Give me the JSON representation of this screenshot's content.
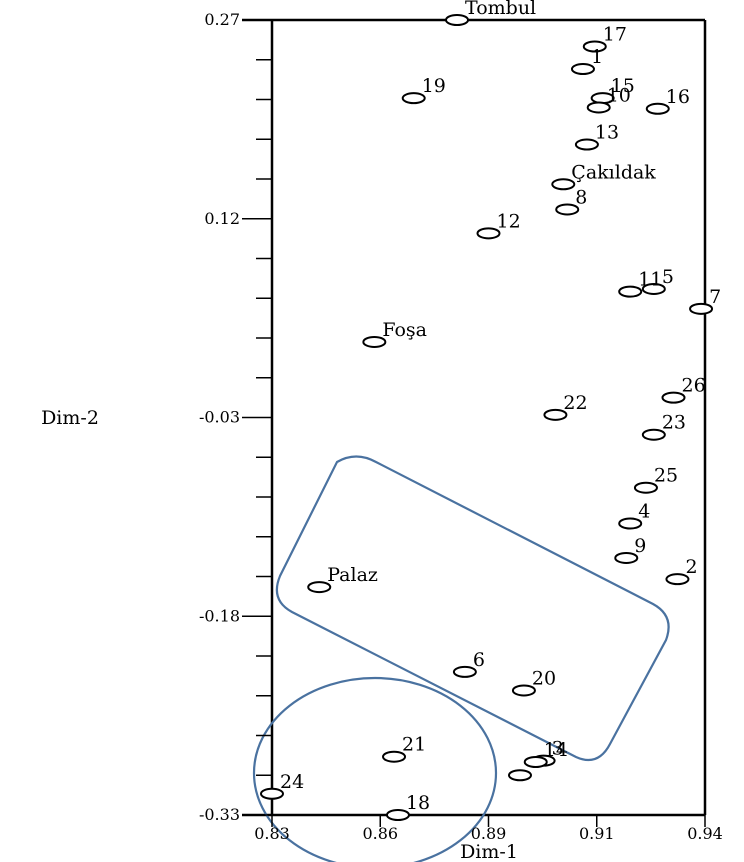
{
  "chart_data": {
    "type": "scatter",
    "xlabel": "Dim-1",
    "ylabel": "Dim-2",
    "xlim": [
      0.83,
      0.94
    ],
    "ylim": [
      -0.33,
      0.27
    ],
    "x_ticks": [
      "0.83",
      "0.86",
      "0.89",
      "0.91",
      "0.94"
    ],
    "x_tick_values": [
      0.83,
      0.8575,
      0.885,
      0.9125,
      0.94
    ],
    "y_ticks": [
      "0.27",
      "0.12",
      "-0.03",
      "-0.18",
      "-0.33"
    ],
    "y_tick_values": [
      0.27,
      0.12,
      -0.03,
      -0.18,
      -0.33
    ],
    "grid": false,
    "points": [
      {
        "label": "Tombul",
        "x": 0.877,
        "y": 0.27
      },
      {
        "label": "17",
        "x": 0.912,
        "y": 0.25
      },
      {
        "label": "1",
        "x": 0.909,
        "y": 0.233
      },
      {
        "label": "19",
        "x": 0.866,
        "y": 0.211
      },
      {
        "label": "15",
        "x": 0.914,
        "y": 0.211
      },
      {
        "label": "10",
        "x": 0.913,
        "y": 0.204
      },
      {
        "label": "16",
        "x": 0.928,
        "y": 0.203
      },
      {
        "label": "13",
        "x": 0.91,
        "y": 0.176
      },
      {
        "label": "Çakıldak",
        "x": 0.904,
        "y": 0.146
      },
      {
        "label": "8",
        "x": 0.905,
        "y": 0.127
      },
      {
        "label": "12",
        "x": 0.885,
        "y": 0.109
      },
      {
        "label": "5",
        "x": 0.927,
        "y": 0.067
      },
      {
        "label": "11",
        "x": 0.921,
        "y": 0.065
      },
      {
        "label": "7",
        "x": 0.939,
        "y": 0.052
      },
      {
        "label": "Foşa",
        "x": 0.856,
        "y": 0.027
      },
      {
        "label": "26",
        "x": 0.932,
        "y": -0.015
      },
      {
        "label": "22",
        "x": 0.902,
        "y": -0.028
      },
      {
        "label": "23",
        "x": 0.927,
        "y": -0.043
      },
      {
        "label": "25",
        "x": 0.925,
        "y": -0.083
      },
      {
        "label": "4",
        "x": 0.921,
        "y": -0.11
      },
      {
        "label": "9",
        "x": 0.92,
        "y": -0.136
      },
      {
        "label": "2",
        "x": 0.933,
        "y": -0.152
      },
      {
        "label": "Palaz",
        "x": 0.842,
        "y": -0.158
      },
      {
        "label": "6",
        "x": 0.879,
        "y": -0.222
      },
      {
        "label": "20",
        "x": 0.894,
        "y": -0.236
      },
      {
        "label": "3",
        "x": 0.899,
        "y": -0.289
      },
      {
        "label": "14",
        "x": 0.897,
        "y": -0.29
      },
      {
        "label": "",
        "x": 0.893,
        "y": -0.3
      },
      {
        "label": "21",
        "x": 0.861,
        "y": -0.286
      },
      {
        "label": "24",
        "x": 0.83,
        "y": -0.314
      },
      {
        "label": "18",
        "x": 0.862,
        "y": -0.33
      }
    ]
  }
}
